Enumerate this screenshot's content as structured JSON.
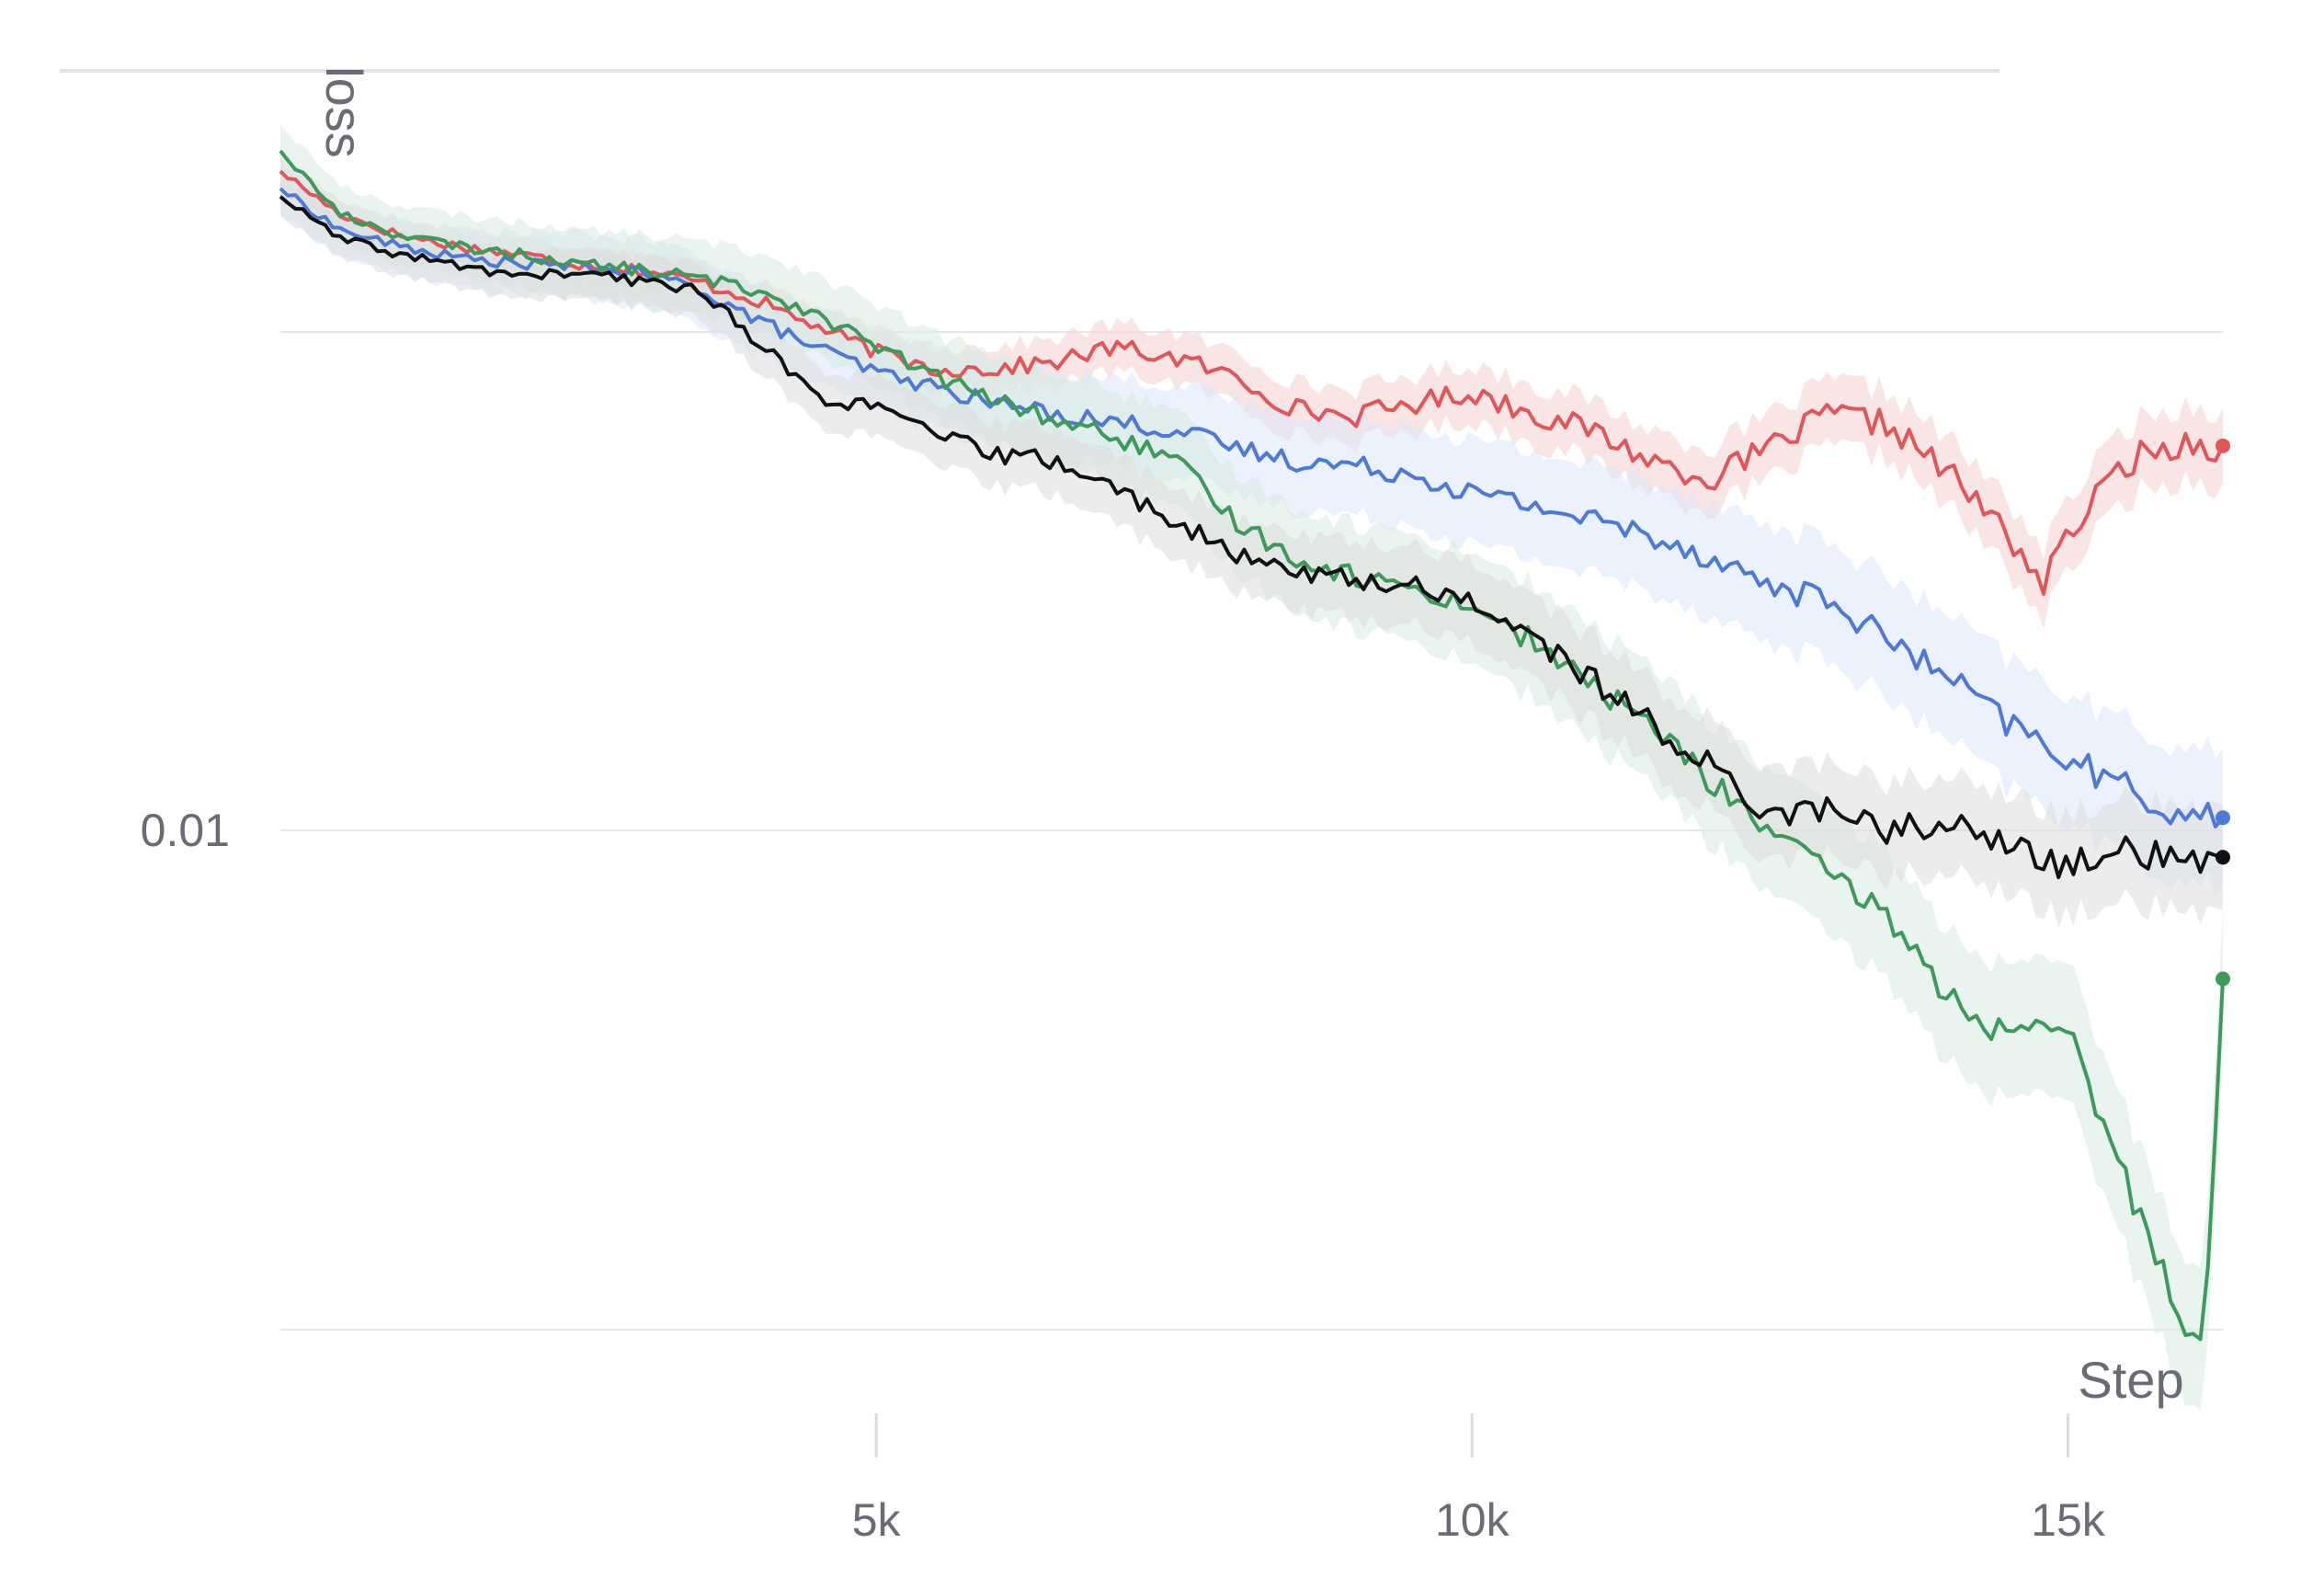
{
  "chart_data": {
    "type": "line",
    "title": "",
    "xlabel": "Step",
    "ylabel": "loss",
    "x_ticks": [
      {
        "value": 5000,
        "label": "5k"
      },
      {
        "value": 10000,
        "label": "10k"
      },
      {
        "value": 15000,
        "label": "15k"
      }
    ],
    "y_scale": "log",
    "y_tick_labels": [
      {
        "value": 0.01,
        "label": "0.01"
      }
    ],
    "y_gridlines": [
      0.0316,
      0.01,
      0.00316
    ],
    "xlim": [
      0,
      16300
    ],
    "ylim": [
      0.0027,
      0.055
    ],
    "grid": true,
    "legend": "none",
    "series": [
      {
        "color": "#e15759",
        "band_color": "#f6cfd0",
        "band_rel_width": 0.09,
        "x": [
          0,
          500,
          1000,
          1500,
          2000,
          2500,
          3000,
          3500,
          4000,
          4500,
          5000,
          5500,
          6000,
          6500,
          7000,
          7500,
          8000,
          8500,
          9000,
          9500,
          10000,
          10500,
          11000,
          11500,
          12000,
          12500,
          13000,
          13500,
          14000,
          14500,
          14800,
          15000,
          15500,
          16000,
          16300
        ],
        "y": [
          0.0458,
          0.0415,
          0.0395,
          0.0385,
          0.0378,
          0.037,
          0.0365,
          0.0355,
          0.034,
          0.032,
          0.0302,
          0.029,
          0.029,
          0.0295,
          0.0305,
          0.0298,
          0.0285,
          0.0265,
          0.026,
          0.0268,
          0.0275,
          0.0262,
          0.0252,
          0.0235,
          0.0225,
          0.0242,
          0.0262,
          0.0255,
          0.0228,
          0.0198,
          0.0176,
          0.0198,
          0.0235,
          0.0245,
          0.0243
        ]
      },
      {
        "color": "#4e79d6",
        "band_color": "#dbe6fb",
        "band_rel_width": 0.17,
        "x": [
          0,
          500,
          1000,
          1500,
          2000,
          2500,
          3000,
          3500,
          4000,
          4500,
          5000,
          5500,
          6000,
          6500,
          7000,
          7500,
          8000,
          8500,
          9000,
          9500,
          10000,
          10500,
          11000,
          11500,
          12000,
          12500,
          13000,
          13500,
          14000,
          14500,
          15000,
          15500,
          16000,
          16300
        ],
        "y": [
          0.044,
          0.04,
          0.0385,
          0.0375,
          0.037,
          0.0368,
          0.0362,
          0.035,
          0.0325,
          0.0305,
          0.0288,
          0.0278,
          0.0268,
          0.0262,
          0.0257,
          0.0252,
          0.0242,
          0.0235,
          0.0232,
          0.0228,
          0.0218,
          0.0212,
          0.0205,
          0.0198,
          0.0188,
          0.0176,
          0.017,
          0.0155,
          0.0142,
          0.0128,
          0.0118,
          0.011,
          0.0103,
          0.0103
        ]
      },
      {
        "color": "#3d9a5b",
        "band_color": "#d6ebde",
        "band_rel_width": 0.18,
        "x": [
          0,
          500,
          1000,
          1500,
          2000,
          2500,
          3000,
          3500,
          4000,
          4500,
          5000,
          5500,
          6000,
          6500,
          7000,
          7500,
          8000,
          8500,
          9000,
          9500,
          10000,
          10500,
          11000,
          11500,
          12000,
          12500,
          13000,
          13500,
          14000,
          14500,
          15000,
          15500,
          16000,
          16150,
          16300
        ],
        "y": [
          0.048,
          0.0415,
          0.0395,
          0.0385,
          0.0378,
          0.037,
          0.0365,
          0.0358,
          0.0348,
          0.033,
          0.0305,
          0.0285,
          0.027,
          0.0258,
          0.0248,
          0.0235,
          0.0205,
          0.0188,
          0.018,
          0.0175,
          0.0168,
          0.0155,
          0.014,
          0.0128,
          0.0112,
          0.01,
          0.009,
          0.0082,
          0.0068,
          0.0062,
          0.0063,
          0.0044,
          0.0032,
          0.0031,
          0.0071
        ]
      },
      {
        "color": "#111111",
        "band_color": "#dcdcdc",
        "band_rel_width": 0.13,
        "x": [
          0,
          500,
          1000,
          1500,
          2000,
          2500,
          3000,
          3500,
          4000,
          4500,
          5000,
          5500,
          6000,
          6500,
          7000,
          7500,
          8000,
          8500,
          9000,
          9500,
          10000,
          10500,
          11000,
          11500,
          12000,
          12500,
          13000,
          13500,
          14000,
          14500,
          15000,
          15500,
          16000,
          16300
        ],
        "y": [
          0.0432,
          0.0392,
          0.0378,
          0.0368,
          0.036,
          0.0362,
          0.0355,
          0.035,
          0.031,
          0.0272,
          0.0265,
          0.025,
          0.0238,
          0.0235,
          0.022,
          0.0205,
          0.0188,
          0.0183,
          0.0178,
          0.0176,
          0.017,
          0.0156,
          0.0142,
          0.0128,
          0.0116,
          0.0104,
          0.0105,
          0.01,
          0.0102,
          0.0096,
          0.0092,
          0.0096,
          0.0092,
          0.0094
        ]
      }
    ]
  }
}
